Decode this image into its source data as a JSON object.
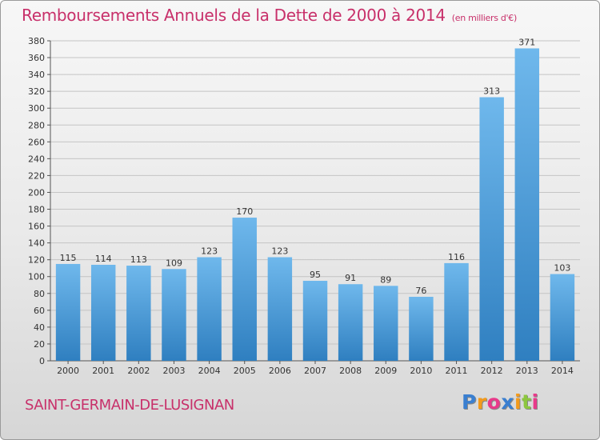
{
  "title": "Remboursements Annuels de la Dette de 2000 à 2014",
  "subtitle": "(en milliers d'€)",
  "commune": "SAINT-GERMAIN-DE-LUSIGNAN",
  "logo": {
    "letters": [
      "P",
      "r",
      "o",
      "x",
      "i",
      "t",
      "i"
    ],
    "colors": [
      "#3a7fd0",
      "#f39a1a",
      "#e83a8a",
      "#3a7fd0",
      "#f39a1a",
      "#8cc63f",
      "#e83a8a"
    ]
  },
  "colors": {
    "bar_light": "#6fb8ec",
    "bar_dark": "#2f7fc0",
    "title": "#c8306a"
  },
  "chart_data": {
    "type": "bar",
    "title": "Remboursements Annuels de la Dette de 2000 à 2014",
    "subtitle": "(en milliers d'€)",
    "categories": [
      "2000",
      "2001",
      "2002",
      "2003",
      "2004",
      "2005",
      "2006",
      "2007",
      "2008",
      "2009",
      "2010",
      "2011",
      "2012",
      "2013",
      "2014"
    ],
    "values": [
      115,
      114,
      113,
      109,
      123,
      170,
      123,
      95,
      91,
      89,
      76,
      116,
      313,
      371,
      103
    ],
    "ylim": [
      0,
      380
    ],
    "ytick_step": 20,
    "grid": true,
    "xlabel": "",
    "ylabel": ""
  }
}
